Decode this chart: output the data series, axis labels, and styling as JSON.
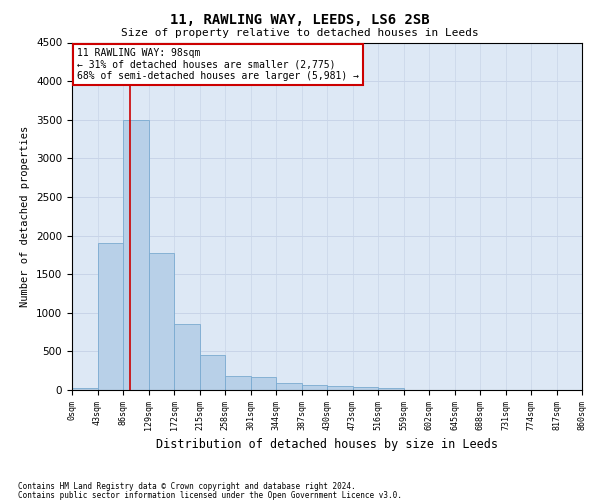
{
  "title1": "11, RAWLING WAY, LEEDS, LS6 2SB",
  "title2": "Size of property relative to detached houses in Leeds",
  "xlabel": "Distribution of detached houses by size in Leeds",
  "ylabel": "Number of detached properties",
  "bar_color": "#b8d0e8",
  "bar_edge_color": "#7aaad0",
  "bar_heights": [
    30,
    1900,
    3500,
    1775,
    850,
    450,
    175,
    165,
    90,
    65,
    55,
    40,
    20,
    0,
    0,
    0,
    0,
    0,
    0,
    0
  ],
  "bin_labels": [
    "0sqm",
    "43sqm",
    "86sqm",
    "129sqm",
    "172sqm",
    "215sqm",
    "258sqm",
    "301sqm",
    "344sqm",
    "387sqm",
    "430sqm",
    "473sqm",
    "516sqm",
    "559sqm",
    "602sqm",
    "645sqm",
    "688sqm",
    "731sqm",
    "774sqm",
    "817sqm",
    "860sqm"
  ],
  "ylim": [
    0,
    4500
  ],
  "yticks": [
    0,
    500,
    1000,
    1500,
    2000,
    2500,
    3000,
    3500,
    4000,
    4500
  ],
  "vline_x": 2.28,
  "vline_color": "#cc0000",
  "annotation_text": "11 RAWLING WAY: 98sqm\n← 31% of detached houses are smaller (2,775)\n68% of semi-detached houses are larger (5,981) →",
  "annotation_edge_color": "#cc0000",
  "footer1": "Contains HM Land Registry data © Crown copyright and database right 2024.",
  "footer2": "Contains public sector information licensed under the Open Government Licence v3.0.",
  "grid_color": "#c8d4e8",
  "background_color": "#dde8f5"
}
